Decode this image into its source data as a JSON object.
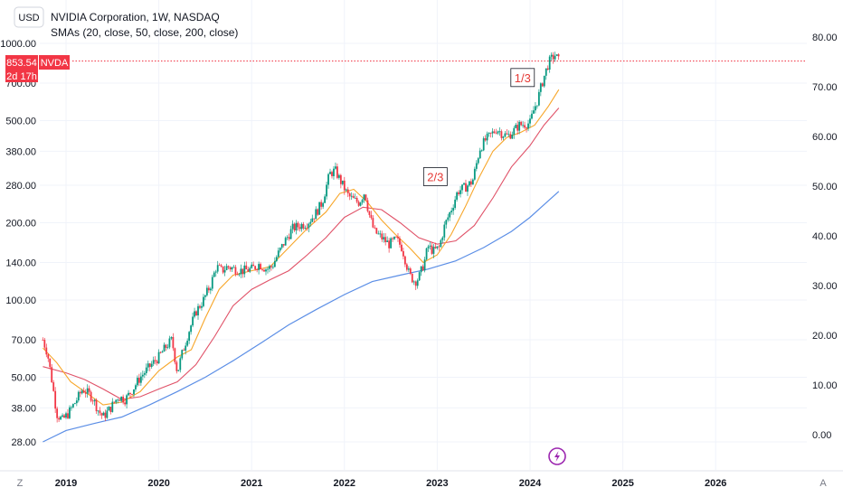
{
  "header": {
    "currency": "USD",
    "title": "NVIDIA Corporation, 1W, NASDAQ",
    "indicator": "SMAs (20, close, 50, close, 200, close)"
  },
  "price_tag": {
    "value": "853.54",
    "symbol": "NVDA",
    "countdown": "2d 17h"
  },
  "corner_left": "Z",
  "corner_right": "A",
  "annotations": [
    {
      "text": "2/3",
      "date": 2022.98,
      "price": 300
    },
    {
      "text": "1/3",
      "date": 2023.92,
      "price": 730
    }
  ],
  "colors": {
    "up": "#089981",
    "down": "#f23645",
    "sma20": "#f7a629",
    "sma50": "#e05268",
    "sma200": "#5b8ee6",
    "price_line": "#f23645",
    "flash": "#9c27b0"
  },
  "flash_icon": "lightning-icon",
  "chart_data": {
    "type": "candlestick",
    "title": "NVIDIA Corporation, 1W, NASDAQ",
    "left_axis": {
      "scale": "log",
      "ticks": [
        "1000.00",
        "700.00",
        "500.00",
        "380.00",
        "280.00",
        "200.00",
        "140.00",
        "100.00",
        "70.00",
        "50.00",
        "38.00",
        "28.00"
      ],
      "values": [
        1000,
        700,
        500,
        380,
        280,
        200,
        140,
        100,
        70,
        50,
        38,
        28
      ]
    },
    "right_axis": {
      "ticks": [
        "80.00",
        "70.00",
        "60.00",
        "50.00",
        "40.00",
        "30.00",
        "20.00",
        "10.00",
        "0.00"
      ],
      "values": [
        80,
        70,
        60,
        50,
        40,
        30,
        20,
        10,
        0
      ]
    },
    "x_axis": {
      "labels": [
        "2019",
        "2020",
        "2021",
        "2022",
        "2023",
        "2024",
        "2025",
        "2026"
      ],
      "values": [
        2019,
        2020,
        2021,
        2022,
        2023,
        2024,
        2025,
        2026
      ]
    },
    "last_price": 853.54,
    "price_path": [
      [
        2018.75,
        70
      ],
      [
        2018.8,
        62
      ],
      [
        2018.85,
        48
      ],
      [
        2018.9,
        36
      ],
      [
        2018.96,
        34
      ],
      [
        2019.02,
        36
      ],
      [
        2019.1,
        40
      ],
      [
        2019.18,
        45
      ],
      [
        2019.28,
        42
      ],
      [
        2019.35,
        37
      ],
      [
        2019.4,
        35
      ],
      [
        2019.48,
        38
      ],
      [
        2019.56,
        42
      ],
      [
        2019.64,
        41
      ],
      [
        2019.72,
        45
      ],
      [
        2019.8,
        50
      ],
      [
        2019.9,
        55
      ],
      [
        2020.0,
        60
      ],
      [
        2020.08,
        66
      ],
      [
        2020.14,
        70
      ],
      [
        2020.2,
        52
      ],
      [
        2020.24,
        60
      ],
      [
        2020.32,
        75
      ],
      [
        2020.4,
        90
      ],
      [
        2020.48,
        100
      ],
      [
        2020.56,
        115
      ],
      [
        2020.62,
        135
      ],
      [
        2020.68,
        130
      ],
      [
        2020.74,
        135
      ],
      [
        2020.82,
        132
      ],
      [
        2020.9,
        130
      ],
      [
        2021.0,
        132
      ],
      [
        2021.08,
        138
      ],
      [
        2021.16,
        132
      ],
      [
        2021.22,
        135
      ],
      [
        2021.28,
        150
      ],
      [
        2021.36,
        170
      ],
      [
        2021.44,
        190
      ],
      [
        2021.52,
        195
      ],
      [
        2021.6,
        200
      ],
      [
        2021.68,
        215
      ],
      [
        2021.76,
        240
      ],
      [
        2021.84,
        310
      ],
      [
        2021.9,
        320
      ],
      [
        2021.96,
        290
      ],
      [
        2022.04,
        255
      ],
      [
        2022.1,
        245
      ],
      [
        2022.16,
        240
      ],
      [
        2022.22,
        265
      ],
      [
        2022.26,
        220
      ],
      [
        2022.32,
        185
      ],
      [
        2022.4,
        175
      ],
      [
        2022.48,
        165
      ],
      [
        2022.56,
        172
      ],
      [
        2022.62,
        160
      ],
      [
        2022.7,
        125
      ],
      [
        2022.76,
        118
      ],
      [
        2022.8,
        122
      ],
      [
        2022.86,
        140
      ],
      [
        2022.9,
        162
      ],
      [
        2022.96,
        155
      ],
      [
        2023.02,
        160
      ],
      [
        2023.08,
        195
      ],
      [
        2023.16,
        230
      ],
      [
        2023.22,
        265
      ],
      [
        2023.3,
        275
      ],
      [
        2023.38,
        290
      ],
      [
        2023.46,
        390
      ],
      [
        2023.52,
        420
      ],
      [
        2023.58,
        440
      ],
      [
        2023.64,
        465
      ],
      [
        2023.7,
        445
      ],
      [
        2023.76,
        435
      ],
      [
        2023.82,
        455
      ],
      [
        2023.88,
        480
      ],
      [
        2023.94,
        485
      ],
      [
        2024.0,
        490
      ],
      [
        2024.04,
        550
      ],
      [
        2024.08,
        600
      ],
      [
        2024.12,
        680
      ],
      [
        2024.16,
        760
      ],
      [
        2024.2,
        840
      ],
      [
        2024.24,
        880
      ],
      [
        2024.27,
        900
      ],
      [
        2024.31,
        854
      ]
    ],
    "sma20": [
      [
        2018.75,
        65
      ],
      [
        2018.9,
        57
      ],
      [
        2019.05,
        48
      ],
      [
        2019.2,
        44
      ],
      [
        2019.4,
        39
      ],
      [
        2019.6,
        40
      ],
      [
        2019.8,
        44
      ],
      [
        2020.0,
        53
      ],
      [
        2020.2,
        60
      ],
      [
        2020.35,
        64
      ],
      [
        2020.5,
        85
      ],
      [
        2020.65,
        110
      ],
      [
        2020.8,
        125
      ],
      [
        2021.0,
        130
      ],
      [
        2021.2,
        135
      ],
      [
        2021.4,
        160
      ],
      [
        2021.6,
        190
      ],
      [
        2021.8,
        220
      ],
      [
        2021.95,
        260
      ],
      [
        2022.1,
        270
      ],
      [
        2022.25,
        240
      ],
      [
        2022.4,
        205
      ],
      [
        2022.55,
        180
      ],
      [
        2022.7,
        160
      ],
      [
        2022.85,
        140
      ],
      [
        2023.0,
        150
      ],
      [
        2023.15,
        180
      ],
      [
        2023.3,
        230
      ],
      [
        2023.45,
        300
      ],
      [
        2023.6,
        380
      ],
      [
        2023.75,
        430
      ],
      [
        2023.9,
        450
      ],
      [
        2024.05,
        480
      ],
      [
        2024.2,
        570
      ],
      [
        2024.31,
        660
      ]
    ],
    "sma50": [
      [
        2018.75,
        55
      ],
      [
        2019.0,
        52
      ],
      [
        2019.2,
        49
      ],
      [
        2019.4,
        45
      ],
      [
        2019.6,
        41
      ],
      [
        2019.8,
        42
      ],
      [
        2020.0,
        45
      ],
      [
        2020.2,
        48
      ],
      [
        2020.4,
        56
      ],
      [
        2020.6,
        72
      ],
      [
        2020.8,
        95
      ],
      [
        2021.0,
        110
      ],
      [
        2021.2,
        120
      ],
      [
        2021.4,
        130
      ],
      [
        2021.6,
        150
      ],
      [
        2021.8,
        175
      ],
      [
        2022.0,
        210
      ],
      [
        2022.2,
        230
      ],
      [
        2022.4,
        225
      ],
      [
        2022.6,
        200
      ],
      [
        2022.8,
        175
      ],
      [
        2023.0,
        165
      ],
      [
        2023.2,
        170
      ],
      [
        2023.4,
        195
      ],
      [
        2023.6,
        250
      ],
      [
        2023.8,
        330
      ],
      [
        2024.0,
        400
      ],
      [
        2024.15,
        480
      ],
      [
        2024.31,
        560
      ]
    ],
    "sma200": [
      [
        2018.75,
        28
      ],
      [
        2019.0,
        31
      ],
      [
        2019.3,
        33
      ],
      [
        2019.6,
        35
      ],
      [
        2019.9,
        39
      ],
      [
        2020.2,
        44
      ],
      [
        2020.5,
        50
      ],
      [
        2020.8,
        58
      ],
      [
        2021.1,
        68
      ],
      [
        2021.4,
        80
      ],
      [
        2021.7,
        92
      ],
      [
        2022.0,
        105
      ],
      [
        2022.3,
        118
      ],
      [
        2022.6,
        125
      ],
      [
        2022.9,
        132
      ],
      [
        2023.2,
        142
      ],
      [
        2023.5,
        160
      ],
      [
        2023.8,
        185
      ],
      [
        2024.0,
        210
      ],
      [
        2024.15,
        235
      ],
      [
        2024.31,
        265
      ]
    ]
  }
}
